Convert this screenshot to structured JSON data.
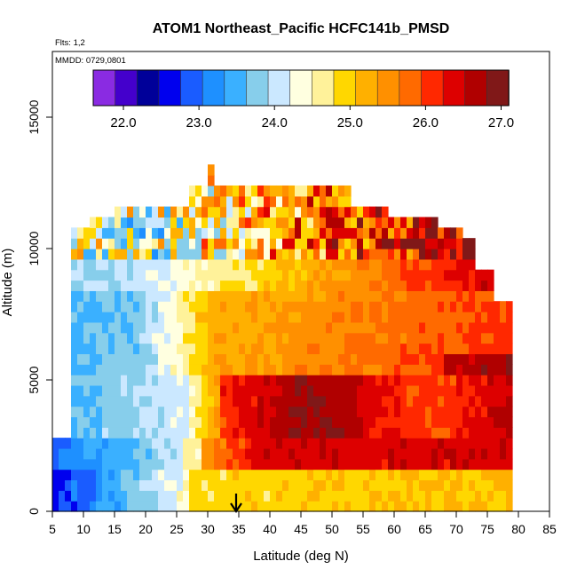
{
  "chart_data": {
    "type": "heatmap",
    "title": "ATOM1 Northeast_Pacific HCFC141b_PMSD",
    "subtitle_flights": "Flts: 1,2",
    "subtitle_dates": "MMDD: 0729,0801",
    "xlabel": "Latitude (deg N)",
    "ylabel": "Altitude (m)",
    "xlim": [
      5,
      85
    ],
    "ylim": [
      0,
      17500
    ],
    "x_ticks": [
      5,
      10,
      15,
      20,
      25,
      30,
      35,
      40,
      45,
      50,
      55,
      60,
      65,
      70,
      75,
      80,
      85
    ],
    "y_ticks": [
      0,
      5000,
      10000,
      15000
    ],
    "colorbar": {
      "vmin": 21.6,
      "vmax": 27.1,
      "ticks": [
        22.0,
        23.0,
        24.0,
        25.0,
        26.0,
        27.0
      ],
      "tick_labels": [
        "22.0",
        "23.0",
        "24.0",
        "25.0",
        "26.0",
        "27.0"
      ],
      "colors": [
        "#8a2be2",
        "#4400cc",
        "#000099",
        "#0000ee",
        "#1a5cff",
        "#1e90ff",
        "#3ab0ff",
        "#87ceeb",
        "#cbe8ff",
        "#ffffe0",
        "#fff29a",
        "#ffd700",
        "#ffb000",
        "#ff9000",
        "#ff6a00",
        "#ff2800",
        "#dd0000",
        "#b00000",
        "#801818"
      ]
    },
    "marker": {
      "latitude": 35,
      "symbol": "↓"
    },
    "field_description": "gridded HCFC141b values (ppt) vs latitude and altitude",
    "altitude_step_m": 400,
    "lat_step_deg": 1,
    "columns": [
      {
        "lat": [
          5,
          8
        ],
        "alt": [
          0,
          2800
        ],
        "value": 22.7
      },
      {
        "lat": [
          8,
          11
        ],
        "alt": [
          0,
          10800
        ],
        "value": 23.8
      },
      {
        "lat": [
          11,
          27
        ],
        "alt": [
          0,
          11200
        ],
        "value": 23.9
      },
      {
        "lat": [
          27,
          34
        ],
        "alt": [
          0,
          13000
        ],
        "value": 24.6
      },
      {
        "lat": [
          34,
          79
        ],
        "alt": [
          0,
          12400
        ],
        "value": 25.6
      }
    ]
  }
}
